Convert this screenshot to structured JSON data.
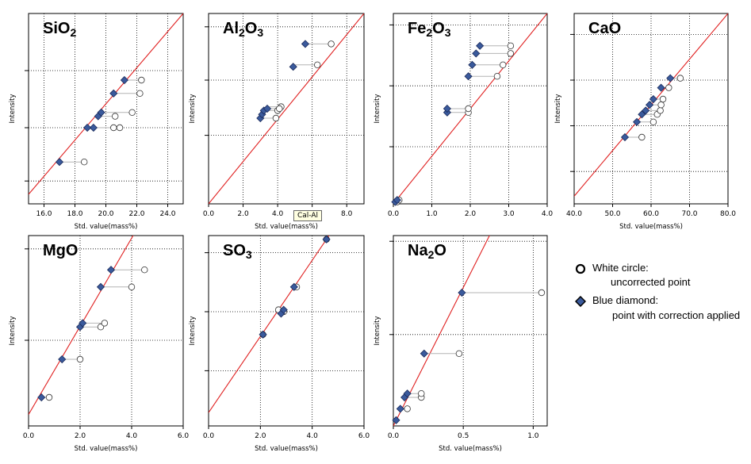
{
  "tooltip": "Cal-Al",
  "legend": {
    "white_circle_label": "White circle:",
    "white_circle_desc": "uncorrected point",
    "blue_diamond_label": "Blue diamond:",
    "blue_diamond_desc": "point with correction applied"
  },
  "colors": {
    "fit_line": "#e02020",
    "diamond_fill": "#3a5a9c",
    "diamond_stroke": "#1a2a5a",
    "connector": "#b4b4b4",
    "grid": "#000000"
  },
  "chart_data": [
    {
      "id": "sio2",
      "type": "scatter",
      "title": "SiO",
      "title_sub": "2",
      "title_tail": "",
      "xlabel": "Std. value(mass%)",
      "ylabel": "Intensity",
      "xlim": [
        15.0,
        25.0
      ],
      "xticks": [
        "16.0",
        "18.0",
        "20.0",
        "22.0",
        "24.0"
      ],
      "xtick_values": [
        16,
        18,
        20,
        22,
        24
      ],
      "ylim": [
        0,
        100
      ],
      "ygrid": [
        12,
        40,
        70
      ],
      "line": [
        [
          15,
          5
        ],
        [
          25,
          100
        ]
      ],
      "diamonds": [
        [
          17.0,
          22
        ],
        [
          19.2,
          40
        ],
        [
          18.8,
          40
        ],
        [
          19.5,
          46
        ],
        [
          19.7,
          48
        ],
        [
          20.5,
          58
        ],
        [
          21.2,
          65
        ]
      ],
      "circles": [
        [
          18.6,
          22
        ],
        [
          20.9,
          40
        ],
        [
          20.5,
          40
        ],
        [
          20.6,
          46
        ],
        [
          21.7,
          48
        ],
        [
          22.2,
          58
        ],
        [
          22.3,
          65
        ]
      ]
    },
    {
      "id": "al2o3",
      "type": "scatter",
      "title": "Al",
      "title_sub": "2",
      "title_tail": "O",
      "title_sub2": "3",
      "xlabel": "Std. value(mass%)",
      "ylabel": "Intensity",
      "xlim": [
        0.0,
        9.0
      ],
      "xticks": [
        "0.0",
        "2.0",
        "4.0",
        "6.0",
        "8.0"
      ],
      "xtick_values": [
        0,
        2,
        4,
        6,
        8
      ],
      "ylim": [
        0,
        100
      ],
      "ygrid": [
        36,
        65,
        93
      ],
      "line": [
        [
          0,
          0
        ],
        [
          9,
          100
        ]
      ],
      "diamonds": [
        [
          3.0,
          45
        ],
        [
          3.1,
          47
        ],
        [
          3.2,
          49
        ],
        [
          3.4,
          50
        ],
        [
          4.9,
          72
        ],
        [
          5.6,
          84
        ]
      ],
      "circles": [
        [
          3.9,
          45
        ],
        [
          4.0,
          49
        ],
        [
          4.2,
          51
        ],
        [
          4.1,
          50
        ],
        [
          6.3,
          73
        ],
        [
          7.1,
          84
        ]
      ]
    },
    {
      "id": "fe2o3",
      "type": "scatter",
      "title": "Fe",
      "title_sub": "2",
      "title_tail": "O",
      "title_sub2": "3",
      "xlabel": "",
      "ylabel": "Intensity",
      "xlim": [
        0.0,
        4.0
      ],
      "xticks": [
        "0.0",
        "1.0",
        "2.0",
        "3.0",
        "4.0"
      ],
      "xtick_values": [
        0,
        1,
        2,
        3,
        4
      ],
      "ylim": [
        0,
        100
      ],
      "ygrid": [
        30,
        62,
        94
      ],
      "line": [
        [
          0,
          0
        ],
        [
          4,
          100
        ]
      ],
      "diamonds": [
        [
          0.05,
          1
        ],
        [
          0.1,
          2
        ],
        [
          1.4,
          48
        ],
        [
          1.4,
          50
        ],
        [
          1.95,
          67
        ],
        [
          2.05,
          73
        ],
        [
          2.15,
          79
        ],
        [
          2.25,
          83
        ]
      ],
      "circles": [
        [
          0.1,
          1
        ],
        [
          0.15,
          2
        ],
        [
          1.95,
          48
        ],
        [
          1.95,
          50
        ],
        [
          2.7,
          67
        ],
        [
          2.85,
          73
        ],
        [
          3.05,
          79
        ],
        [
          3.05,
          83
        ]
      ]
    },
    {
      "id": "cao",
      "type": "scatter",
      "title": "CaO",
      "title_sub": "",
      "title_tail": "",
      "xlabel": "Std. value(mass%)",
      "ylabel": "Intensity",
      "xlim": [
        40.0,
        80.0
      ],
      "xticks": [
        "40.0",
        "50.0",
        "60.0",
        "70.0",
        "80.0"
      ],
      "xtick_values": [
        40,
        50,
        60,
        70,
        80
      ],
      "ylim": [
        0,
        100
      ],
      "ygrid": [
        17,
        41,
        65,
        89
      ],
      "line": [
        [
          40,
          4
        ],
        [
          80,
          100
        ]
      ],
      "diamonds": [
        [
          53.2,
          35
        ],
        [
          56.3,
          43
        ],
        [
          57.6,
          47
        ],
        [
          58.6,
          49
        ],
        [
          59.6,
          52
        ],
        [
          60.6,
          55
        ],
        [
          62.6,
          61
        ],
        [
          65.0,
          66
        ]
      ],
      "circles": [
        [
          57.6,
          35
        ],
        [
          60.6,
          43
        ],
        [
          61.6,
          47
        ],
        [
          62.4,
          49
        ],
        [
          62.6,
          52
        ],
        [
          63.1,
          55
        ],
        [
          64.6,
          61
        ],
        [
          67.6,
          66
        ]
      ]
    },
    {
      "id": "mgo",
      "type": "scatter",
      "title": "MgO",
      "title_sub": "",
      "title_tail": "",
      "xlabel": "Std. value(mass%)",
      "ylabel": "Intensity",
      "xlim": [
        0.0,
        6.0
      ],
      "xticks": [
        "0.0",
        "2.0",
        "4.0",
        "6.0"
      ],
      "xtick_values": [
        0,
        2,
        4,
        6
      ],
      "ylim": [
        0,
        100
      ],
      "ygrid": [
        45,
        93
      ],
      "line": [
        [
          0,
          6
        ],
        [
          6,
          145
        ]
      ],
      "diamonds": [
        [
          0.5,
          15
        ],
        [
          1.3,
          35
        ],
        [
          2.0,
          52
        ],
        [
          2.1,
          54
        ],
        [
          2.8,
          73
        ],
        [
          3.2,
          82
        ]
      ],
      "circles": [
        [
          0.8,
          15
        ],
        [
          2.0,
          35
        ],
        [
          2.8,
          52
        ],
        [
          2.95,
          54
        ],
        [
          4.0,
          73
        ],
        [
          4.5,
          82
        ]
      ]
    },
    {
      "id": "so3",
      "type": "scatter",
      "title": "SO",
      "title_sub": "3",
      "title_tail": "",
      "xlabel": "Std. value(mass%)",
      "ylabel": "Intensity",
      "xlim": [
        0.0,
        6.0
      ],
      "xticks": [
        "0.0",
        "2.0",
        "4.0",
        "6.0"
      ],
      "xtick_values": [
        0,
        2,
        4,
        6
      ],
      "ylim": [
        0,
        100
      ],
      "ygrid": [
        29,
        60,
        91
      ],
      "line": [
        [
          0,
          7
        ],
        [
          6,
          127
        ]
      ],
      "diamonds": [
        [
          2.1,
          48
        ],
        [
          2.8,
          59
        ],
        [
          2.9,
          61
        ],
        [
          3.3,
          73
        ],
        [
          4.55,
          98
        ]
      ],
      "circles": [
        [
          2.1,
          48
        ],
        [
          2.7,
          61
        ],
        [
          2.9,
          60
        ],
        [
          3.4,
          73
        ],
        [
          4.55,
          98
        ]
      ]
    },
    {
      "id": "na2o",
      "type": "scatter",
      "title": "Na",
      "title_sub": "2",
      "title_tail": "O",
      "xlabel": "Std. value(mass%)",
      "ylabel": "Intensity",
      "xlim": [
        0.0,
        1.1
      ],
      "xticks": [
        "0.0",
        "0.5",
        "1.0"
      ],
      "xtick_values": [
        0,
        0.5,
        1.0
      ],
      "ylim": [
        0,
        100
      ],
      "ygrid": [
        48,
        97
      ],
      "line": [
        [
          0,
          0
        ],
        [
          1.1,
          160
        ]
      ],
      "diamonds": [
        [
          0.02,
          3
        ],
        [
          0.05,
          9
        ],
        [
          0.08,
          15
        ],
        [
          0.1,
          17
        ],
        [
          0.22,
          38
        ],
        [
          0.49,
          70
        ]
      ],
      "circles": [
        [
          0.1,
          9
        ],
        [
          0.2,
          15
        ],
        [
          0.2,
          17
        ],
        [
          0.47,
          38
        ],
        [
          1.06,
          70
        ]
      ]
    }
  ]
}
